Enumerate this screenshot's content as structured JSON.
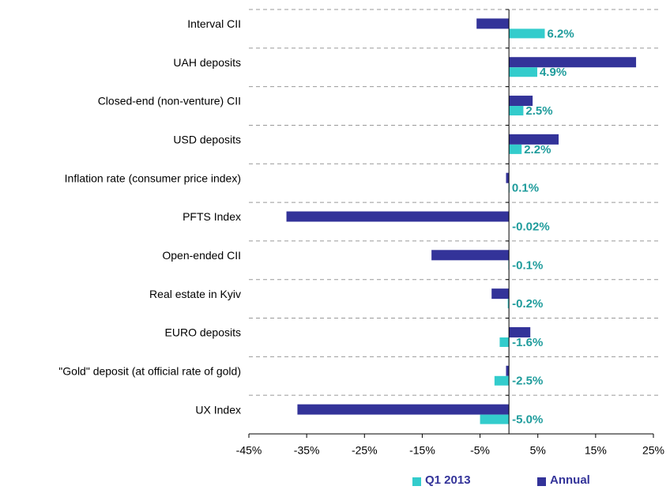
{
  "chart_data": {
    "type": "bar",
    "orientation": "horizontal",
    "categories": [
      "Interval CII",
      "UAH deposits",
      "Closed-end (non-venture) CII",
      "USD deposits",
      "Inflation rate (consumer price index)",
      "PFTS Index",
      "Open-ended CII",
      "Real estate in Kyiv",
      "EURO deposits",
      "\"Gold\" deposit (at official rate of gold)",
      "UX Index"
    ],
    "series": [
      {
        "name": "Q1 2013",
        "color": "#33cccc",
        "values": [
          6.2,
          4.9,
          2.5,
          2.2,
          0.1,
          -0.02,
          -0.1,
          -0.2,
          -1.6,
          -2.5,
          -5.0
        ],
        "value_labels": [
          "6.2%",
          "4.9%",
          "2.5%",
          "2.2%",
          "0.1%",
          "-0.02%",
          "-0.1%",
          "-0.2%",
          "-1.6%",
          "-2.5%",
          "-5.0%"
        ]
      },
      {
        "name": "Annual",
        "color": "#333399",
        "values": [
          -5.6,
          22,
          4.1,
          8.6,
          -0.5,
          -38.5,
          -13.4,
          -3,
          3.7,
          -0.5,
          -36.6
        ]
      }
    ],
    "xlim": [
      -45,
      25
    ],
    "xticks": [
      {
        "value": -45,
        "label": "-45%"
      },
      {
        "value": -35,
        "label": "-35%"
      },
      {
        "value": -25,
        "label": "-25%"
      },
      {
        "value": -15,
        "label": "-15%"
      },
      {
        "value": -5,
        "label": "-5%"
      },
      {
        "value": 5,
        "label": "5%"
      },
      {
        "value": 15,
        "label": "15%"
      },
      {
        "value": 25,
        "label": "25%"
      }
    ],
    "legend": "bottom"
  }
}
